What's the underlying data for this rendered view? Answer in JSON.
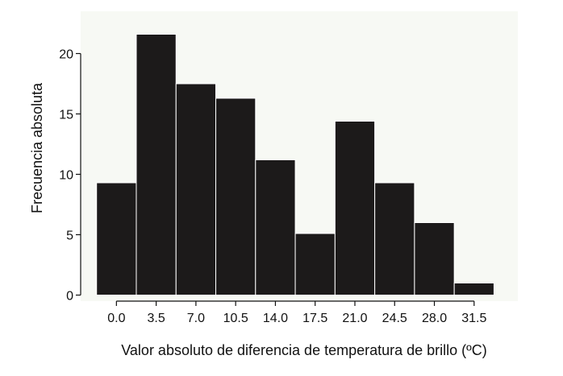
{
  "chart_data": {
    "type": "bar",
    "title": "",
    "xlabel": "Valor absoluto de diferencia de temperatura de brillo (ºC)",
    "ylabel": "Frecuencia absoluta",
    "categories": [
      "0.0",
      "3.5",
      "7.0",
      "10.5",
      "14.0",
      "17.5",
      "21.0",
      "24.5",
      "28.0",
      "31.5"
    ],
    "x_ticks": [
      0,
      3.5,
      7,
      10.5,
      14,
      17.5,
      21,
      24.5,
      28,
      31.5
    ],
    "x_tick_labels": [
      "0.0",
      "3.5",
      "7.0",
      "10.5",
      "14.0",
      "17.5",
      "21.0",
      "24.5",
      "28.0",
      "31.5"
    ],
    "bin_edges": [
      -1.75,
      1.75,
      5.25,
      8.75,
      12.25,
      15.75,
      19.25,
      22.75,
      26.25,
      29.75,
      33.25
    ],
    "values": [
      9.3,
      21.6,
      17.5,
      16.3,
      11.2,
      5.1,
      14.4,
      9.3,
      6.0,
      1.0
    ],
    "xlim": [
      -3.15,
      35.35
    ],
    "ylim": [
      -0.5,
      23.5
    ],
    "y_ticks": [
      0,
      5,
      10,
      15,
      20
    ],
    "y_tick_labels": [
      "0",
      "5",
      "10",
      "15",
      "20"
    ],
    "grid": false,
    "colors": {
      "bar_fill": "#1c1a1a",
      "bar_edge": "#ffffff",
      "plot_bg": "#f7f9f4",
      "axis": "#111111"
    }
  }
}
